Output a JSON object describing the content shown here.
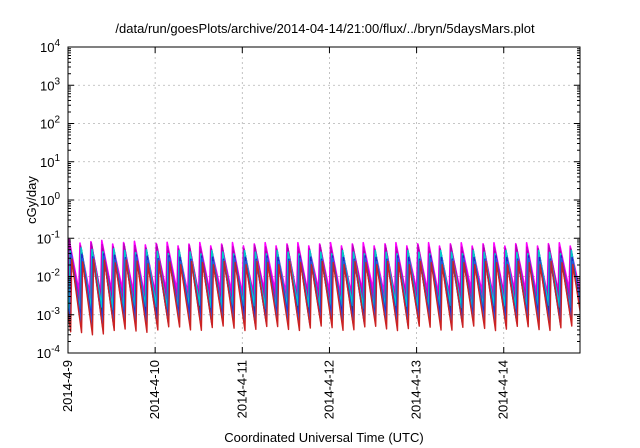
{
  "chart_data": {
    "type": "line",
    "title": "/data/run/goesPlots/archive/2014-04-14/21:00/flux/../bryn/5daysMars.plot",
    "xlabel": "Coordinated Universal Time (UTC)",
    "ylabel": "cGy/day",
    "x_range": [
      "2014-04-09 00:00",
      "2014-04-14 21:00"
    ],
    "x_ticks": [
      "2014-4-9",
      "2014-4-10",
      "2014-4-11",
      "2014-4-12",
      "2014-4-13",
      "2014-4-14"
    ],
    "y_scale": "log",
    "ylim": [
      0.0001,
      10000
    ],
    "y_ticks": [
      {
        "base": "10",
        "exp": "-4"
      },
      {
        "base": "10",
        "exp": "-3"
      },
      {
        "base": "10",
        "exp": "-2"
      },
      {
        "base": "10",
        "exp": "-1"
      },
      {
        "base": "10",
        "exp": "0"
      },
      {
        "base": "10",
        "exp": "1"
      },
      {
        "base": "10",
        "exp": "2"
      },
      {
        "base": "10",
        "exp": "3"
      },
      {
        "base": "10",
        "exp": "4"
      }
    ],
    "grid": true,
    "legend": "none",
    "pattern": {
      "shape": "sawtooth",
      "period_hours": 3,
      "peak_value_range": [
        0.03,
        0.07
      ],
      "trough_value_range": [
        0.0003,
        0.004
      ]
    },
    "series_colors": [
      "#ff00ff",
      "#cc00cc",
      "#b000b0",
      "#00cccc",
      "#1a7a1a",
      "#2222cc",
      "#3355dd",
      "#cc2222"
    ]
  }
}
